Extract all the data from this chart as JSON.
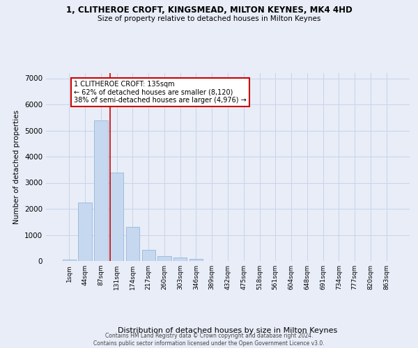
{
  "title_line1": "1, CLITHEROE CROFT, KINGSMEAD, MILTON KEYNES, MK4 4HD",
  "title_line2": "Size of property relative to detached houses in Milton Keynes",
  "xlabel": "Distribution of detached houses by size in Milton Keynes",
  "ylabel": "Number of detached properties",
  "footer_line1": "Contains HM Land Registry data © Crown copyright and database right 2024.",
  "footer_line2": "Contains public sector information licensed under the Open Government Licence v3.0.",
  "bar_labels": [
    "1sqm",
    "44sqm",
    "87sqm",
    "131sqm",
    "174sqm",
    "217sqm",
    "260sqm",
    "303sqm",
    "346sqm",
    "389sqm",
    "432sqm",
    "475sqm",
    "518sqm",
    "561sqm",
    "604sqm",
    "648sqm",
    "691sqm",
    "734sqm",
    "777sqm",
    "820sqm",
    "863sqm"
  ],
  "bar_values": [
    50,
    2250,
    5400,
    3400,
    1300,
    420,
    200,
    130,
    90,
    0,
    0,
    0,
    0,
    0,
    0,
    0,
    0,
    0,
    0,
    0,
    0
  ],
  "bar_color": "#c5d8f0",
  "bar_edge_color": "#8aadd4",
  "grid_color": "#c8d4e8",
  "background_color": "#e8edf8",
  "marker_line_color": "#cc0000",
  "marker_bar_index": 3,
  "annotation_text": "1 CLITHEROE CROFT: 135sqm\n← 62% of detached houses are smaller (8,120)\n38% of semi-detached houses are larger (4,976) →",
  "annotation_box_facecolor": "#ffffff",
  "annotation_box_edgecolor": "#cc0000",
  "ylim_max": 7200,
  "yticks": [
    0,
    1000,
    2000,
    3000,
    4000,
    5000,
    6000,
    7000
  ]
}
